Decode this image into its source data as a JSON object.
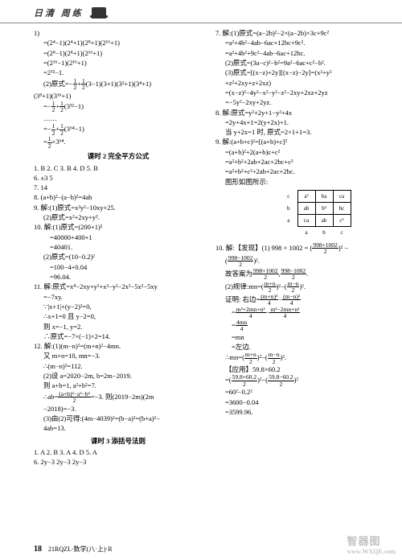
{
  "header": {
    "title": "日清  周练"
  },
  "left": {
    "l1": "1)",
    "l2": "=(2⁴−1)(2⁴+1)(2⁸+1)(2¹⁶+1)",
    "l3": "=(2⁸−1)(2⁸+1)(2¹⁶+1)",
    "l4": "=(2¹⁶−1)(2¹⁶+1)",
    "l5": "=2³²−1.",
    "l6pre": "(2)原式=−",
    "l6a_n": "1",
    "l6a_d": "2",
    "l6mid": "+",
    "l6b_n": "1",
    "l6b_d": "2",
    "l6post": "(3−1)(3+1)(3²+1)(3⁴+1)",
    "l7": "(3⁸+1)(3¹⁶+1)",
    "l8pre": "=−",
    "l8a_n": "1",
    "l8a_d": "2",
    "l8mid": "+",
    "l8b_n": "1",
    "l8b_d": "2",
    "l8post": "(3³²−1)",
    "l9": "……",
    "l10pre": "=−",
    "l10a_n": "1",
    "l10a_d": "2",
    "l10mid": "+",
    "l10b_n": "1",
    "l10b_d": "2",
    "l10post": "(3⁶⁴−1)",
    "l11pre": "=",
    "l11a_n": "1",
    "l11a_d": "2",
    "l11post": "×3⁶⁴.",
    "sec2_title": "课时 2  完全平方公式",
    "s2_l1": "1. B  2. C  3. B  4. D  5. B",
    "s2_l2": "6. ±3  5",
    "s2_l3": "7. 14",
    "s2_l4": "8. (a+b)²−(a−b)²=4ab",
    "s2_l5": "9. 解:(1)原式=x²y²−10xy+25.",
    "s2_l6": "(2)原式=x²+2xy+y².",
    "s2_l7": "10. 解:(1)原式=(200+1)²",
    "s2_l8": "=40000+400+1",
    "s2_l9": "=40401.",
    "s2_l10": "(2)原式=(10−0.2)²",
    "s2_l11": "=100−4+0.04",
    "s2_l12": "=96.04.",
    "s2_l13": "11. 解:原式=x⁴−2xy+y²+x²−y²−2x²−5x²−5xy",
    "s2_l14": "=−7xy.",
    "s2_l15": "∵|x+1|+(y−2)²=0,",
    "s2_l16": "∴x+1=0 且 y−2=0,",
    "s2_l17": "则 x=−1, y=2.",
    "s2_l18": "∴原式=−7×(−1)×2=14.",
    "s2_l19": "12. 解:(1)(m−n)²=(m+n)²−4mn.",
    "s2_l20": "又 m+n=10, mn=−3.",
    "s2_l21": "∴(m−n)²=112.",
    "s2_l22": "(2)设 a=2020−2m, b=2m−2019.",
    "s2_l23": "则 a+b=1, a²+b²=7.",
    "s2_l24pre": "∴ab=",
    "s2_l24_n": "(a+b)²−a²−b²",
    "s2_l24_d": "2",
    "s2_l24post": "=−3. 则(2019−2m)(2m",
    "s2_l25": "−2018)=−3.",
    "s2_l26": "(3)由(2)可得:(4m−4039)²=(b−a)²=(b+a)²−",
    "s2_l27": "4ab=13.",
    "sec3_title": "课时 3  添括号法则",
    "s3_l1": "1. A  2. B  3. A  4. D  5. A",
    "s3_l2": "6. 2y−3  2y−3  2y−3"
  },
  "right": {
    "r1": "7. 解:(1)原式=(a−2b)²−2×(a−2b)×3c+9c²",
    "r2": "=a²+4b²−4ab−6ac+12bc+9c².",
    "r3": "=a²+4b²+9c²−4ab−6ac+12bc.",
    "r4": "(2)原式=(3a−c)²−b²=9a²−6ac+c²−b².",
    "r5": "(3)原式=[(x−z)+2y][(x−z)−2y]=(x²+y²",
    "r6": "+z²+2xy+z+2xz)",
    "r7": "=(x−z)²−4y²−x²−y²−z²−2xy+2xz+2yz",
    "r8": "=−5y²−2xy+2yz.",
    "r9": "8. 解:原式=y²+2y+1−y²+4x",
    "r10": "=2y+4x+1=2(y+2x)+1.",
    "r11": "当 y+2x=1 时, 原式=2×1+1=3.",
    "r12": "9. 解:(a+b+c)²=[(a+b)+c]²",
    "r13": "=(a+b)²+2(a+b)c+c²",
    "r14": "=a²+b²+2ab+2ac+2bc+c²",
    "r15": "=a²+b²+c²+2ab+2ac+2bc.",
    "r16": "图形如图所示:",
    "table": {
      "c00": "",
      "c01": "a²",
      "c02": "ba",
      "c03": "ca",
      "c10": "",
      "c11": "ab",
      "c12": "b²",
      "c13": "bc",
      "c20": "",
      "c21": "ca",
      "c22": "ab",
      "c23": "c²",
      "ax_bottom_a": "a",
      "ax_bottom_b": "b",
      "ax_bottom_c": "c",
      "ax_left_a": "a",
      "ax_left_b": "b",
      "ax_left_c": "c"
    },
    "r17pre": "10. 解:【发现】(1) 998 × 1002 = (",
    "r17_n": "998+1002",
    "r17_d": "2",
    "r17post": ")² −",
    "r18pre": "(",
    "r18_n": "998−1002",
    "r18_d": "2",
    "r18post": ")².",
    "r19pre": "故答案为",
    "r19a_n": "998+1002",
    "r19a_d": "2",
    "r19mid": ",",
    "r19b_n": "998−1002",
    "r19b_d": "2",
    "r19post": ".",
    "r20pre": "(2)规律:mn=(",
    "r20a_n": "m+n",
    "r20a_d": "2",
    "r20mid": ")²−(",
    "r20b_n": "m−n",
    "r20b_d": "2",
    "r20post": ")².",
    "r21pre": "证明: 右边=",
    "r21a_n": "(m+n)²",
    "r21a_d": "4",
    "r21mid": "−",
    "r21b_n": "(m−n)²",
    "r21b_d": "4",
    "r22pre": "=",
    "r22a_n": "m²+2mn+n²",
    "r22a_d": "4",
    "r22mid": "−",
    "r22b_n": "m²−2mn+n²",
    "r22b_d": "4",
    "r23pre": "=",
    "r23_n": "4mn",
    "r23_d": "4",
    "r24": "=mn",
    "r25": "=左边.",
    "r26pre": "∴mn=(",
    "r26a_n": "m+n",
    "r26a_d": "2",
    "r26mid": ")²−(",
    "r26b_n": "m−n",
    "r26b_d": "2",
    "r26post": ")².",
    "r27": "【应用】59.8×60.2",
    "r28pre": "=(",
    "r28a_n": "59.8+60.2",
    "r28a_d": "2",
    "r28mid": ")²−(",
    "r28b_n": "59.8−60.2",
    "r28b_d": "2",
    "r28post": ")²",
    "r29": "=60²−0.2²",
    "r30": "=3600−0.04",
    "r31": "=3599.96."
  },
  "footer": {
    "page": "18",
    "code": "21RQZL·数学(八·上)·R"
  },
  "watermark": {
    "main": "智器图",
    "sub": "www.WXQE.com"
  }
}
